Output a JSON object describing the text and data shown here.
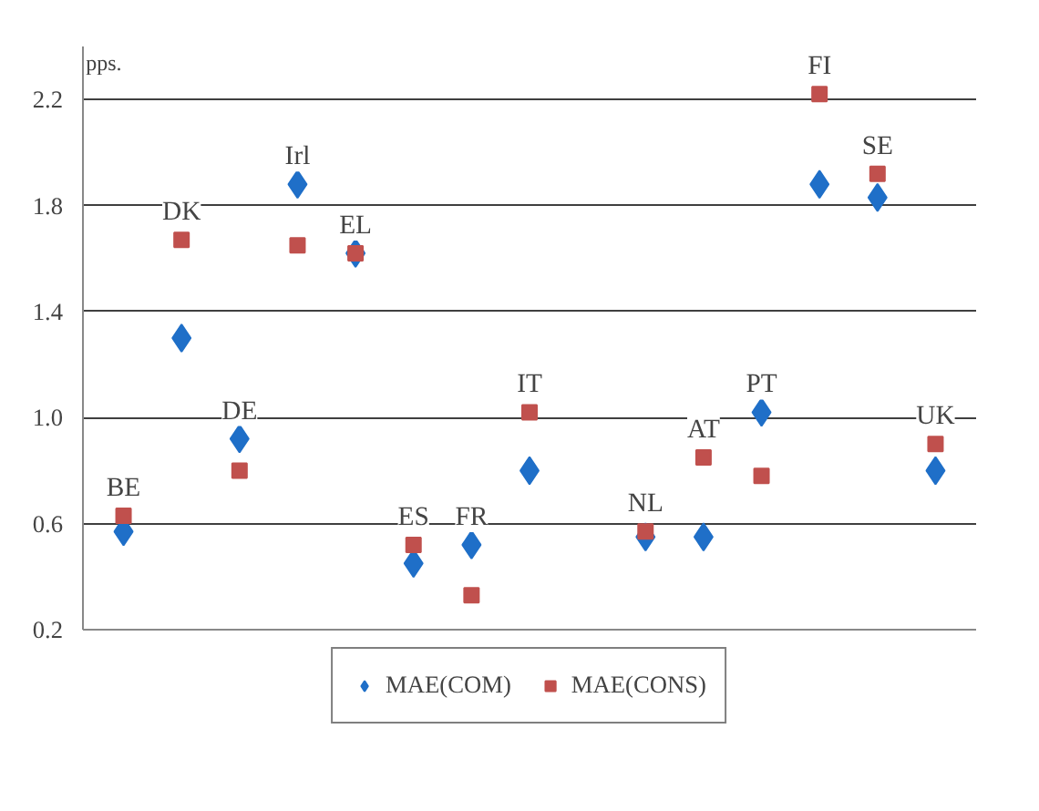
{
  "chart_data": {
    "type": "scatter",
    "ylabel": "pps.",
    "categories": [
      "BE",
      "DK",
      "DE",
      "Irl",
      "EL",
      "ES",
      "FR",
      "IT",
      null,
      "NL",
      "AT",
      "PT",
      "FI",
      "SE",
      "UK"
    ],
    "series": [
      {
        "name": "MAE(COM)",
        "color": "#1f6fc8",
        "marker": "diamond",
        "values": [
          0.57,
          1.3,
          0.92,
          1.88,
          1.62,
          0.45,
          0.52,
          0.8,
          null,
          0.55,
          0.55,
          1.02,
          1.88,
          1.83,
          0.8
        ]
      },
      {
        "name": "MAE(CONS)",
        "color": "#c0504d",
        "marker": "square",
        "values": [
          0.63,
          1.67,
          0.8,
          1.65,
          1.62,
          0.52,
          0.33,
          1.02,
          null,
          0.57,
          0.85,
          0.78,
          2.22,
          1.92,
          0.9
        ]
      }
    ],
    "ylim": [
      0.2,
      2.4
    ],
    "yticks": [
      0.2,
      0.6,
      {
        "value": 1.0,
        "label": "1.0"
      },
      1.4,
      1.8,
      2.2
    ],
    "grid": "y",
    "legend": "bottom",
    "tick_labels": "y"
  }
}
